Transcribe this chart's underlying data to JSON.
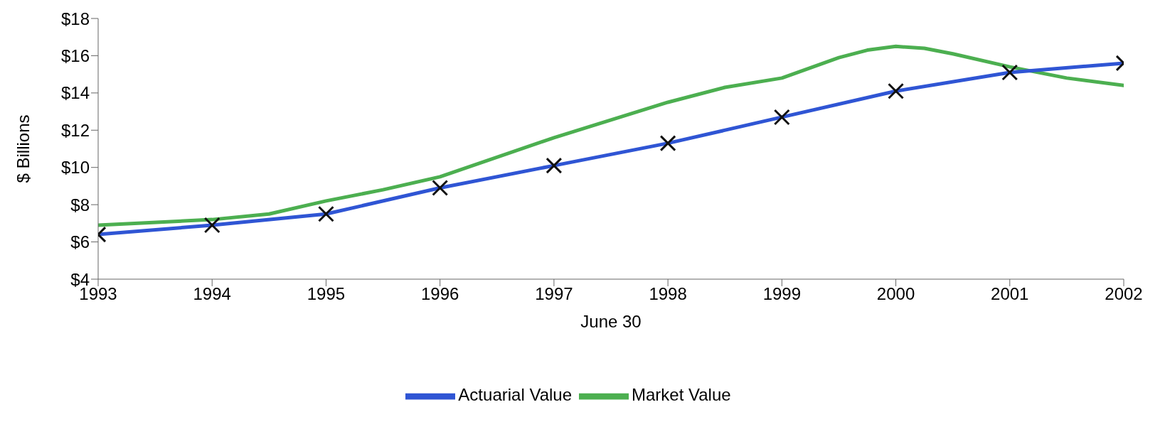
{
  "chart_data": {
    "type": "line",
    "xlabel": "June 30",
    "ylabel": "$ Billions",
    "xlim": [
      1993,
      2002
    ],
    "xticks": [
      1993,
      1994,
      1995,
      1996,
      1997,
      1998,
      1999,
      2000,
      2001,
      2002
    ],
    "ylim": [
      4,
      18
    ],
    "yticks": [
      {
        "value": 4,
        "label": "$4"
      },
      {
        "value": 6,
        "label": "$6"
      },
      {
        "value": 8,
        "label": "$8"
      },
      {
        "value": 10,
        "label": "$10"
      },
      {
        "value": 12,
        "label": "$12"
      },
      {
        "value": 14,
        "label": "$14"
      },
      {
        "value": 16,
        "label": "$16"
      },
      {
        "value": 18,
        "label": "$18"
      }
    ],
    "grid": false,
    "legend": "bottom",
    "series": [
      {
        "name": "Market Value",
        "color": "#4caf50",
        "marker": "none",
        "x": [
          1993,
          1994,
          1994.5,
          1995,
          1995.5,
          1996,
          1997,
          1998,
          1998.5,
          1999,
          1999.5,
          1999.75,
          2000,
          2000.25,
          2000.5,
          2001,
          2001.5,
          2002
        ],
        "values": [
          6.9,
          7.2,
          7.5,
          8.2,
          8.8,
          9.5,
          11.6,
          13.5,
          14.3,
          14.8,
          15.9,
          16.3,
          16.5,
          16.4,
          16.1,
          15.4,
          14.8,
          14.4
        ]
      },
      {
        "name": "Actuarial Value",
        "color": "#2f55d4",
        "marker": "cross",
        "x": [
          1993,
          1994,
          1995,
          1996,
          1997,
          1998,
          1999,
          2000,
          2001,
          2002
        ],
        "values": [
          6.4,
          6.9,
          7.5,
          8.9,
          10.1,
          11.3,
          12.7,
          14.1,
          15.1,
          15.6
        ]
      }
    ]
  }
}
